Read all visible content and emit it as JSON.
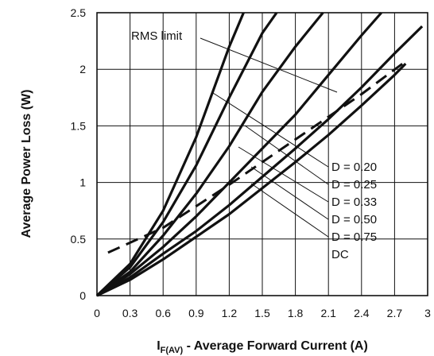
{
  "chart_data": {
    "type": "line",
    "xlabel_main": "I",
    "xlabel_sub": "F(AV)",
    "xlabel_rest": " - Average Forward Current (A)",
    "ylabel": "Average Power Loss (W)",
    "xlim": [
      0,
      3
    ],
    "ylim": [
      0,
      2.5
    ],
    "x_ticks": [
      "0",
      "0.3",
      "0.6",
      "0.9",
      "1.2",
      "1.5",
      "1.8",
      "2.1",
      "2.4",
      "2.7",
      "3"
    ],
    "y_ticks": [
      "0",
      "0.5",
      "1",
      "1.5",
      "2",
      "2.5"
    ],
    "grid": true,
    "series": [
      {
        "name": "D = 0.20",
        "style": "solid",
        "x": [
          0,
          0.3,
          0.6,
          0.9,
          1.2,
          1.33
        ],
        "y": [
          0,
          0.28,
          0.75,
          1.4,
          2.2,
          2.5
        ]
      },
      {
        "name": "D = 0.25",
        "style": "solid",
        "x": [
          0,
          0.3,
          0.6,
          0.9,
          1.2,
          1.5,
          1.63
        ],
        "y": [
          0,
          0.25,
          0.65,
          1.15,
          1.75,
          2.32,
          2.5
        ]
      },
      {
        "name": "D = 0.33",
        "style": "solid",
        "x": [
          0,
          0.3,
          0.6,
          0.9,
          1.2,
          1.5,
          1.8,
          2.05
        ],
        "y": [
          0,
          0.21,
          0.53,
          0.9,
          1.32,
          1.8,
          2.2,
          2.5
        ]
      },
      {
        "name": "D = 0.50",
        "style": "solid",
        "x": [
          0,
          0.3,
          0.6,
          0.9,
          1.2,
          1.5,
          1.8,
          2.1,
          2.4,
          2.58
        ],
        "y": [
          0,
          0.19,
          0.43,
          0.7,
          1.0,
          1.3,
          1.6,
          1.95,
          2.3,
          2.5
        ]
      },
      {
        "name": "D = 0.75",
        "style": "solid",
        "x": [
          0,
          0.3,
          0.6,
          0.9,
          1.2,
          1.5,
          1.8,
          2.1,
          2.4,
          2.7,
          2.95
        ],
        "y": [
          0,
          0.16,
          0.37,
          0.57,
          0.8,
          1.05,
          1.3,
          1.56,
          1.84,
          2.14,
          2.38
        ]
      },
      {
        "name": "DC",
        "style": "solid",
        "x": [
          0,
          0.3,
          0.6,
          0.9,
          1.2,
          1.5,
          1.8,
          2.1,
          2.4,
          2.7,
          2.8
        ],
        "y": [
          0,
          0.14,
          0.32,
          0.52,
          0.72,
          0.95,
          1.18,
          1.42,
          1.68,
          1.95,
          2.05
        ]
      },
      {
        "name": "RMS limit",
        "style": "dashed",
        "x": [
          0.1,
          0.6,
          1.2,
          1.8,
          2.4,
          2.8
        ],
        "y": [
          0.38,
          0.6,
          0.98,
          1.38,
          1.78,
          2.07
        ]
      }
    ],
    "annotations": {
      "rms_label": "RMS limit",
      "curve_labels": [
        "D = 0.20",
        "D = 0.25",
        "D = 0.33",
        "D = 0.50",
        "D = 0.75",
        "DC"
      ]
    }
  }
}
